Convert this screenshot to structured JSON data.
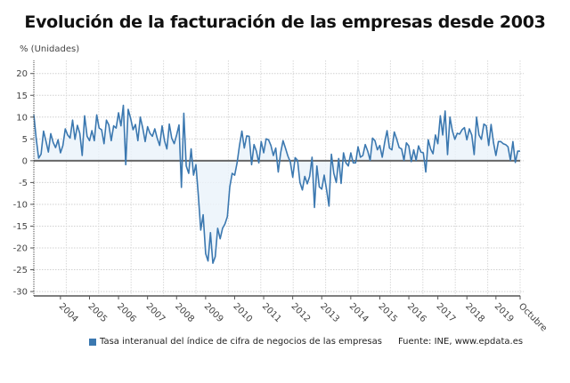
{
  "chart_data": {
    "type": "area",
    "title": "Evolución de la facturación de las empresas desde 2003",
    "ylabel": "% (Unidades)",
    "xlabel": "",
    "ylim": [
      -31,
      23
    ],
    "yticks": [
      "20",
      "15",
      "10",
      "5",
      "0",
      "-5",
      "-10",
      "-15",
      "-20",
      "-25",
      "-30"
    ],
    "xticks": [
      "2004",
      "2005",
      "2006",
      "2007",
      "2008",
      "2009",
      "2010",
      "2011",
      "2012",
      "2013",
      "2014",
      "2015",
      "2016",
      "2017",
      "2018",
      "2019",
      "Octubre"
    ],
    "grid": true,
    "legend_position": "bottom",
    "colors": {
      "line": "#3b78b0",
      "fill": "#eaf2fa",
      "zero_line": "#666666"
    },
    "series": [
      {
        "name": "Tasa interanual del índice de cifra de negocios de las empresas",
        "values": [
          10.5,
          5,
          0.6,
          1.5,
          6.8,
          4.5,
          2,
          6.2,
          4.2,
          3,
          4.8,
          1.8,
          3.5,
          7.3,
          5.9,
          5.2,
          9.3,
          4.9,
          8.1,
          6.3,
          1.2,
          10.3,
          5.6,
          4.6,
          6.9,
          4.6,
          10.5,
          7.5,
          7.1,
          3.9,
          9.3,
          8.2,
          4.6,
          8,
          7.5,
          11,
          8,
          12.7,
          -0.9,
          11.8,
          9.7,
          7.1,
          8.3,
          4.6,
          10,
          7.6,
          4.4,
          7.8,
          6.3,
          5.6,
          7.3,
          5.2,
          3.5,
          8,
          4.6,
          2.7,
          8.4,
          5.2,
          3.9,
          5.9,
          8.2,
          -6.1,
          10.9,
          -1.2,
          -2.9,
          2.7,
          -3.3,
          -0.9,
          -8,
          -15.9,
          -12.4,
          -21.3,
          -23,
          -16.5,
          -23.5,
          -22,
          -15.5,
          -17.9,
          -15.5,
          -14.5,
          -12.8,
          -6,
          -2.9,
          -3.3,
          -0.5,
          3.5,
          6.8,
          2.9,
          5.7,
          5.6,
          -0.9,
          3.7,
          2.2,
          -0.5,
          4.4,
          1.8,
          5,
          4.8,
          3.5,
          1.2,
          2.9,
          -2.6,
          1.8,
          4.6,
          2.9,
          1.1,
          -0.2,
          -3.8,
          0.7,
          0.1,
          -5,
          -6.7,
          -3.6,
          -5.3,
          -3.6,
          0.8,
          -10.7,
          -1.2,
          -6,
          -6.5,
          -3.3,
          -6.7,
          -10.4,
          1.5,
          -2.9,
          -5,
          0.5,
          -5.2,
          1.8,
          -0.5,
          -1.2,
          1.8,
          -0.5,
          -0.5,
          3.2,
          0.8,
          1.2,
          3.7,
          2.2,
          0.1,
          5.2,
          4.6,
          2.5,
          3.5,
          0.8,
          4.2,
          6.9,
          2.9,
          2.5,
          6.6,
          4.9,
          3,
          2.7,
          0.1,
          4.1,
          3.4,
          -0.2,
          2.5,
          0.1,
          3.4,
          2,
          1.8,
          -2.6,
          4.8,
          2.7,
          1.6,
          5.9,
          3.9,
          10.3,
          5.9,
          11.4,
          1.4,
          10,
          6.9,
          4.9,
          6.3,
          6.1,
          7.1,
          7.6,
          4.8,
          7.3,
          5.9,
          1.4,
          10,
          5.9,
          4.9,
          8.4,
          8,
          3.5,
          8.3,
          4.2,
          1.2,
          4.4,
          4.4,
          3.9,
          3.7,
          3.2,
          0.1,
          4.4,
          -0.4,
          2.2,
          2.2
        ]
      }
    ],
    "source": "Fuente: INE, www.epdata.es"
  }
}
